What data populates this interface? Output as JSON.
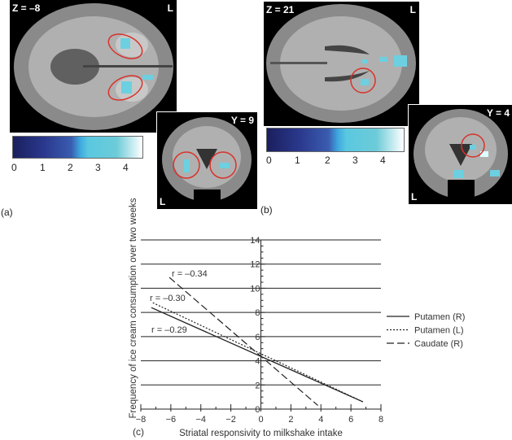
{
  "panel_a": {
    "label": "(a)",
    "axial_label": "Z = –8",
    "axial_side": "L",
    "coronal_label": "Y = 9",
    "coronal_side": "L",
    "colorbar_ticks": [
      "0",
      "1",
      "2",
      "3",
      "4"
    ]
  },
  "panel_b": {
    "label": "(b)",
    "axial_label": "Z = 21",
    "axial_side": "L",
    "coronal_label": "Y = 4",
    "coronal_side": "L",
    "colorbar_ticks": [
      "0",
      "1",
      "2",
      "3",
      "4"
    ]
  },
  "colors": {
    "activation": "#6cd0e0",
    "roi_circle": "#d8322a"
  },
  "chart_data": {
    "type": "line",
    "panel_label": "(c)",
    "xlabel": "Striatal responsivity to milkshake intake",
    "ylabel": "Frequency of ice cream consumption over two weeks",
    "xlim": [
      -8,
      8
    ],
    "ylim": [
      0,
      14
    ],
    "xticks": [
      "-8",
      "-6",
      "-4",
      "-2",
      "0",
      "2",
      "4",
      "6",
      "8"
    ],
    "yticks": [
      "0",
      "2",
      "4",
      "6",
      "8",
      "10",
      "12",
      "14"
    ],
    "grid": "horizontal",
    "legend_position": "right",
    "series": [
      {
        "name": "Putamen (R)",
        "style": "solid",
        "x": [
          -7.3,
          6.8
        ],
        "y": [
          8.4,
          0.6
        ],
        "annotation": "r = –0.29"
      },
      {
        "name": "Putamen (L)",
        "style": "dotted",
        "x": [
          -7.2,
          6.8
        ],
        "y": [
          8.8,
          0.6
        ],
        "annotation": "r = –0.30"
      },
      {
        "name": "Caudate (R)",
        "style": "dashed",
        "x": [
          -6.1,
          3.8
        ],
        "y": [
          10.9,
          0.3
        ],
        "annotation": "r = –0.34"
      }
    ]
  }
}
